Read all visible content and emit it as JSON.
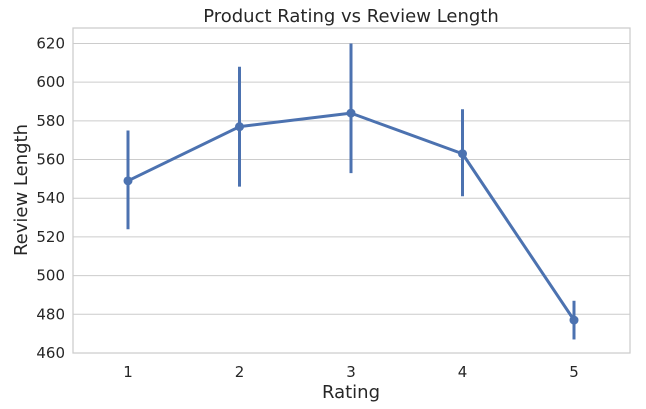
{
  "chart_data": {
    "type": "line",
    "title": "Product Rating vs Review Length",
    "xlabel": "Rating",
    "ylabel": "Review Length",
    "categories": [
      "1",
      "2",
      "3",
      "4",
      "5"
    ],
    "series": [
      {
        "values": [
          549,
          577,
          584,
          563,
          477
        ],
        "ci_low": [
          524,
          546,
          553,
          541,
          467
        ],
        "ci_high": [
          575,
          608,
          620,
          586,
          487
        ]
      }
    ],
    "ylim": [
      460,
      628
    ],
    "yticks": [
      460,
      480,
      500,
      520,
      540,
      560,
      580,
      600,
      620
    ],
    "grid": true,
    "legend": "none",
    "color": "#4c72b0"
  }
}
